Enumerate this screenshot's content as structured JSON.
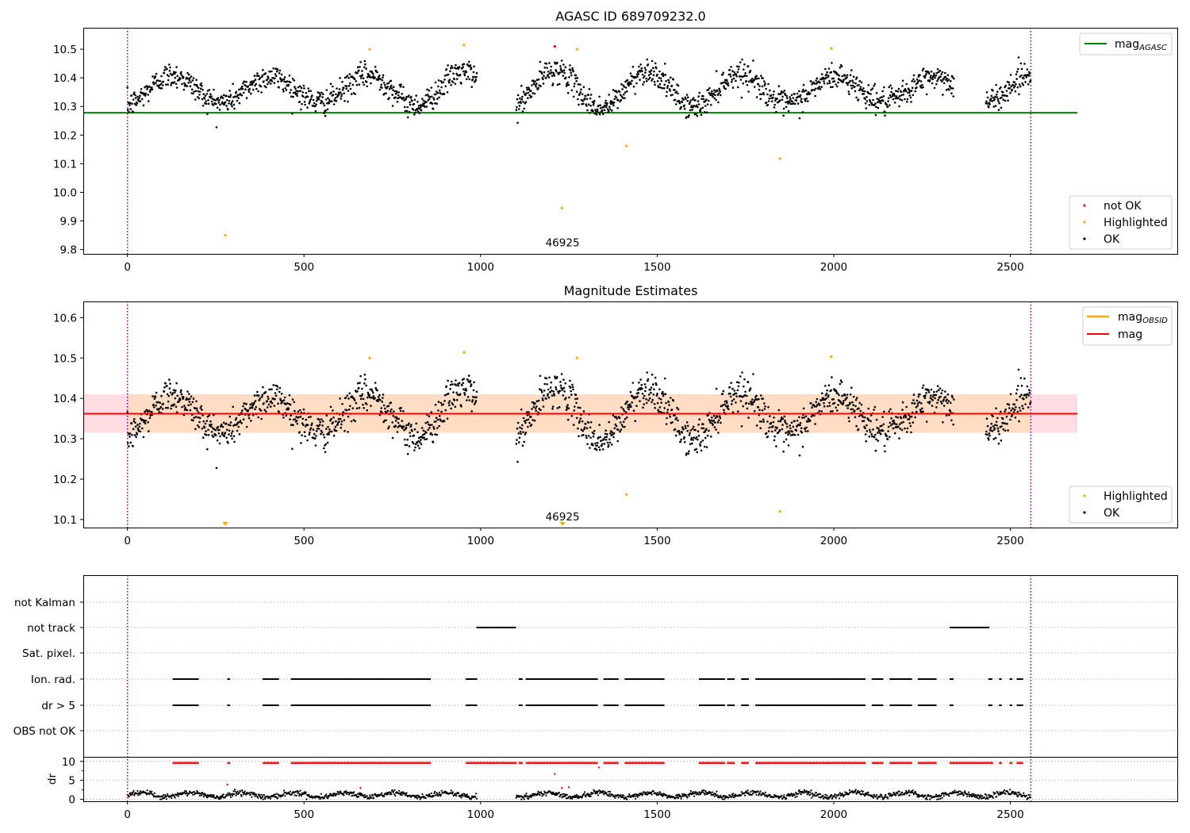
{
  "chart_data": [
    {
      "type": "scatter",
      "title": "AGASC ID 689709232.0",
      "xlim": [
        -125,
        2975
      ],
      "ylim": [
        9.785,
        10.575
      ],
      "xticks": [
        0,
        500,
        1000,
        1500,
        2000,
        2500
      ],
      "yticks": [
        9.8,
        9.9,
        10.0,
        10.1,
        10.2,
        10.3,
        10.4,
        10.5
      ],
      "ytick_labels": [
        "9.8",
        "9.9",
        "10.0",
        "10.1",
        "10.2",
        "10.3",
        "10.4",
        "10.5"
      ],
      "vlines": [
        0,
        2558
      ],
      "colors": {
        "ok": "#000000",
        "highlighted": "#ffa500",
        "not_ok": "#ff0000",
        "mag_agasc": "#008000",
        "vline": "#800080"
      },
      "mag_agasc": 10.278,
      "hline_x_range": [
        -125,
        2690
      ],
      "highlighted": [
        [
          277,
          9.85
        ],
        [
          1230,
          9.945
        ],
        [
          686,
          10.5
        ],
        [
          953,
          10.515
        ],
        [
          1273,
          10.5
        ],
        [
          1413,
          10.162
        ],
        [
          1848,
          10.118
        ],
        [
          1993,
          10.503
        ]
      ],
      "not_ok": [
        [
          1210,
          10.51
        ]
      ],
      "annotation": {
        "text": "46925",
        "x": 1232,
        "y": 9.812
      },
      "legend_top": [
        {
          "label": "mag",
          "sub": "AGASC",
          "color": "#008000"
        }
      ],
      "legend_bottom": [
        {
          "label": "not OK",
          "color": "#ff0000"
        },
        {
          "label": "Highlighted",
          "color": "#ffa500"
        },
        {
          "label": "OK",
          "color": "#000000"
        }
      ]
    },
    {
      "type": "scatter",
      "title": "Magnitude Estimates",
      "xlim": [
        -125,
        2975
      ],
      "ylim": [
        10.08,
        10.64
      ],
      "xticks": [
        0,
        500,
        1000,
        1500,
        2000,
        2500
      ],
      "yticks": [
        10.1,
        10.2,
        10.3,
        10.4,
        10.5,
        10.6
      ],
      "ytick_labels": [
        "10.1",
        "10.2",
        "10.3",
        "10.4",
        "10.5",
        "10.6"
      ],
      "vlines": [
        0,
        2558
      ],
      "colors": {
        "ok": "#000000",
        "highlighted": "#ffa500",
        "mag": "#ff0000",
        "mag_obsid": "#ffa500",
        "band_obsid": "#ffdcc4",
        "band_mag": "#ffdde3",
        "vline": "#800080"
      },
      "mag": 10.362,
      "mag_band": [
        10.315,
        10.41
      ],
      "hline_x_range": [
        -125,
        2690
      ],
      "obsid_x_range": [
        0,
        2558
      ],
      "highlighted": [
        [
          686,
          10.5
        ],
        [
          953,
          10.514
        ],
        [
          1273,
          10.5
        ],
        [
          1413,
          10.162
        ],
        [
          1848,
          10.12
        ],
        [
          1993,
          10.503
        ]
      ],
      "below_markers": [
        277,
        1232
      ],
      "annotation": {
        "text": "46925",
        "x": 1232,
        "y": 10.1
      },
      "legend_top": [
        {
          "label": "mag",
          "sub": "OBSID",
          "color": "#ffa500"
        },
        {
          "label": "mag",
          "sub": "",
          "color": "#ff0000"
        }
      ],
      "legend_bottom": [
        {
          "label": "Highlighted",
          "color": "#ffa500"
        },
        {
          "label": "OK",
          "color": "#000000"
        }
      ]
    },
    {
      "type": "scatter",
      "title": "",
      "xlim": [
        -125,
        2975
      ],
      "xticks": [
        0,
        500,
        1000,
        1500,
        2000,
        2500
      ],
      "vlines": [
        0,
        2558
      ],
      "categories": [
        "not Kalman",
        "not track",
        "Sat. pixel.",
        "Ion. rad.",
        "dr > 5",
        "OBS not OK"
      ],
      "flag_segments": {
        "not track": [
          [
            990,
            1100
          ],
          [
            2330,
            2440
          ]
        ],
        "Ion. rad.": [
          [
            130,
            200
          ],
          [
            285,
            290
          ],
          [
            385,
            430
          ],
          [
            465,
            860
          ],
          [
            960,
            990
          ],
          [
            1110,
            1120
          ],
          [
            1130,
            1330
          ],
          [
            1350,
            1390
          ],
          [
            1410,
            1520
          ],
          [
            1620,
            1690
          ],
          [
            1700,
            1720
          ],
          [
            1740,
            1760
          ],
          [
            1780,
            2090
          ],
          [
            2110,
            2140
          ],
          [
            2160,
            2220
          ],
          [
            2240,
            2290
          ],
          [
            2330,
            2340
          ],
          [
            2440,
            2450
          ],
          [
            2470,
            2475
          ],
          [
            2500,
            2505
          ],
          [
            2520,
            2535
          ]
        ],
        "dr > 5": [
          [
            130,
            200
          ],
          [
            285,
            290
          ],
          [
            385,
            430
          ],
          [
            465,
            860
          ],
          [
            960,
            990
          ],
          [
            1110,
            1120
          ],
          [
            1130,
            1330
          ],
          [
            1350,
            1390
          ],
          [
            1410,
            1520
          ],
          [
            1620,
            1690
          ],
          [
            1700,
            1720
          ],
          [
            1740,
            1760
          ],
          [
            1780,
            2090
          ],
          [
            2110,
            2140
          ],
          [
            2160,
            2220
          ],
          [
            2240,
            2290
          ],
          [
            2330,
            2340
          ],
          [
            2440,
            2450
          ],
          [
            2470,
            2475
          ],
          [
            2500,
            2505
          ],
          [
            2520,
            2535
          ]
        ]
      },
      "dr_panel": {
        "ylabel": "dr",
        "ylim": [
          -0.5,
          11
        ],
        "yticks": [
          0,
          5,
          10
        ],
        "ytick_labels": [
          "0",
          "5",
          "10"
        ],
        "data_range": [
          0,
          2558
        ],
        "gaps": [
          [
            990,
            1100
          ]
        ],
        "clip_value": 9.7,
        "clipped_segments": [
          [
            130,
            200
          ],
          [
            285,
            290
          ],
          [
            385,
            430
          ],
          [
            465,
            860
          ],
          [
            960,
            1100
          ],
          [
            1110,
            1120
          ],
          [
            1130,
            1330
          ],
          [
            1350,
            1390
          ],
          [
            1410,
            1520
          ],
          [
            1620,
            1690
          ],
          [
            1700,
            1720
          ],
          [
            1740,
            1760
          ],
          [
            1780,
            2090
          ],
          [
            2110,
            2140
          ],
          [
            2160,
            2220
          ],
          [
            2240,
            2290
          ],
          [
            2330,
            2450
          ],
          [
            2470,
            2475
          ],
          [
            2500,
            2505
          ],
          [
            2520,
            2535
          ]
        ],
        "red_outliers": [
          [
            1210,
            6.7
          ],
          [
            1230,
            3.0
          ],
          [
            1250,
            3.2
          ],
          [
            1335,
            8.4
          ],
          [
            283,
            3.9
          ],
          [
            660,
            3.0
          ]
        ],
        "colors": {
          "ok": "#000000",
          "not_ok": "#ff0000"
        }
      }
    }
  ]
}
